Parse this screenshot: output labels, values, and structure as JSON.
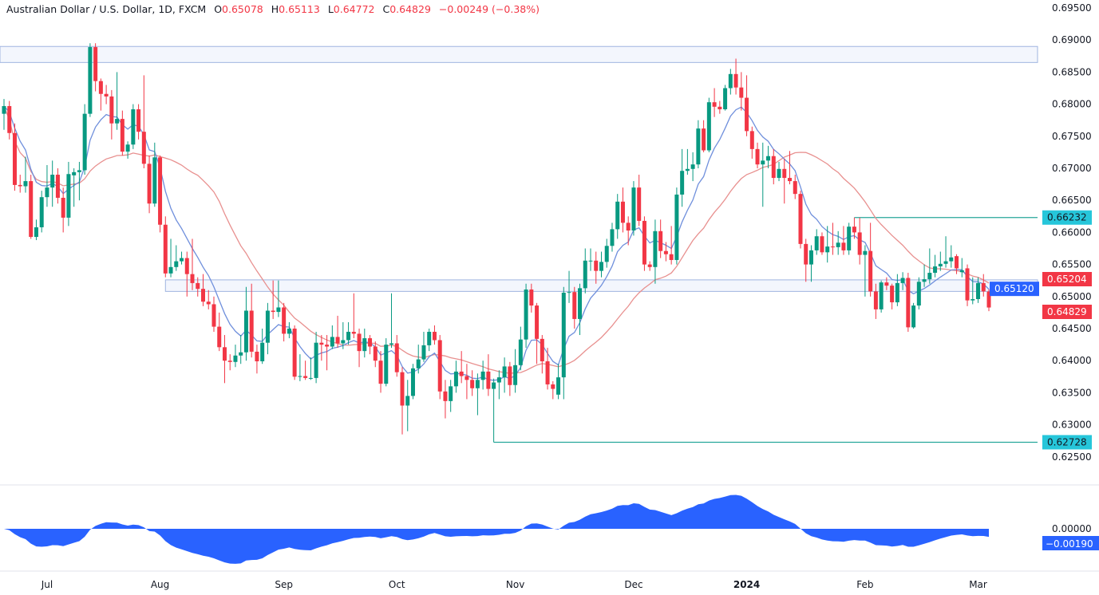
{
  "legend": {
    "symbol": "Australian Dollar / U.S. Dollar, 1D, FXCM",
    "open_label": "O",
    "open": "0.65078",
    "high_label": "H",
    "high": "0.65113",
    "low_label": "L",
    "low": "0.64772",
    "close_label": "C",
    "close": "0.64829",
    "change": "−0.00249 (−0.38%)"
  },
  "price_axis": {
    "ticks": [
      "0.69500",
      "0.69000",
      "0.68500",
      "0.68000",
      "0.67500",
      "0.67000",
      "0.66500",
      "0.66000",
      "0.65500",
      "0.65000",
      "0.64500",
      "0.64000",
      "0.63500",
      "0.63000",
      "0.62500"
    ],
    "labels": [
      {
        "text": "0.66232",
        "value": 0.66232,
        "bg": "#26c6da",
        "fg": "#131722"
      },
      {
        "text": "0.65204",
        "value": 0.65204,
        "bg": "#f23645",
        "fg": "#ffffff"
      },
      {
        "text": "0.65120",
        "value": 0.6512,
        "bg": "#2962ff",
        "fg": "#ffffff"
      },
      {
        "text": "0.64829",
        "value": 0.64829,
        "bg": "#f23645",
        "fg": "#ffffff"
      },
      {
        "text": "0.62728",
        "value": 0.62728,
        "bg": "#26c6da",
        "fg": "#131722"
      }
    ]
  },
  "oscillator_axis": {
    "zero_label": "0.00000",
    "last_label": "−0.00190",
    "last_value": -0.0019,
    "color": "#2962ff"
  },
  "time_axis": {
    "labels": [
      {
        "text": "Jul",
        "bold": false
      },
      {
        "text": "Aug",
        "bold": false
      },
      {
        "text": "Sep",
        "bold": false
      },
      {
        "text": "Oct",
        "bold": false
      },
      {
        "text": "Nov",
        "bold": false
      },
      {
        "text": "Dec",
        "bold": false
      },
      {
        "text": "2024",
        "bold": true
      },
      {
        "text": "Feb",
        "bold": false
      },
      {
        "text": "Mar",
        "bold": false
      }
    ]
  },
  "chart_data": {
    "type": "candlestick",
    "title": "Australian Dollar / U.S. Dollar, 1D, FXCM",
    "ylim": [
      0.625,
      0.695
    ],
    "up_color": "#089981",
    "down_color": "#f23645",
    "ma_colors": {
      "fast": "#6f8fdc",
      "slow": "#e8908f"
    },
    "zones": [
      [
        0.6865,
        0.689
      ],
      [
        0.6508,
        0.6526
      ]
    ],
    "levels": [
      0.66232,
      0.62728
    ],
    "level_color": "#26a69a",
    "zone_color": "#9fb4e0",
    "candles": [
      [
        0.6785,
        0.6808,
        0.676,
        0.6797
      ],
      [
        0.6797,
        0.6805,
        0.6745,
        0.6755
      ],
      [
        0.6755,
        0.677,
        0.6665,
        0.6674
      ],
      [
        0.6674,
        0.669,
        0.6662,
        0.6672
      ],
      [
        0.6672,
        0.6718,
        0.6662,
        0.668
      ],
      [
        0.668,
        0.669,
        0.659,
        0.6593
      ],
      [
        0.6593,
        0.662,
        0.6588,
        0.6608
      ],
      [
        0.6608,
        0.6665,
        0.66,
        0.6655
      ],
      [
        0.6655,
        0.6705,
        0.664,
        0.667
      ],
      [
        0.667,
        0.6712,
        0.664,
        0.669
      ],
      [
        0.669,
        0.67,
        0.6645,
        0.6654
      ],
      [
        0.6654,
        0.667,
        0.66,
        0.6623
      ],
      [
        0.6623,
        0.671,
        0.661,
        0.6691
      ],
      [
        0.6689,
        0.67,
        0.664,
        0.6694
      ],
      [
        0.6694,
        0.671,
        0.665,
        0.6697
      ],
      [
        0.6697,
        0.68,
        0.669,
        0.6785
      ],
      [
        0.6785,
        0.6895,
        0.678,
        0.6889
      ],
      [
        0.6889,
        0.6895,
        0.682,
        0.6836
      ],
      [
        0.6836,
        0.684,
        0.679,
        0.6816
      ],
      [
        0.6816,
        0.683,
        0.68,
        0.6812
      ],
      [
        0.6812,
        0.6822,
        0.6745,
        0.677
      ],
      [
        0.677,
        0.685,
        0.676,
        0.6777
      ],
      [
        0.6777,
        0.679,
        0.672,
        0.6726
      ],
      [
        0.6726,
        0.6742,
        0.6715,
        0.6737
      ],
      [
        0.6737,
        0.68,
        0.673,
        0.6792
      ],
      [
        0.6792,
        0.68,
        0.6745,
        0.6757
      ],
      [
        0.6757,
        0.6845,
        0.67,
        0.6707
      ],
      [
        0.6707,
        0.672,
        0.663,
        0.6645
      ],
      [
        0.6645,
        0.674,
        0.664,
        0.6717
      ],
      [
        0.6717,
        0.672,
        0.66,
        0.6612
      ],
      [
        0.6612,
        0.6625,
        0.653,
        0.6536
      ],
      [
        0.6536,
        0.659,
        0.653,
        0.6546
      ],
      [
        0.6546,
        0.658,
        0.654,
        0.6555
      ],
      [
        0.6555,
        0.657,
        0.655,
        0.656
      ],
      [
        0.656,
        0.657,
        0.65,
        0.6535
      ],
      [
        0.6535,
        0.659,
        0.651,
        0.6521
      ],
      [
        0.6521,
        0.653,
        0.65,
        0.6512
      ],
      [
        0.6512,
        0.6535,
        0.6485,
        0.6492
      ],
      [
        0.6492,
        0.651,
        0.648,
        0.6488
      ],
      [
        0.6488,
        0.65,
        0.6445,
        0.6453
      ],
      [
        0.6453,
        0.6475,
        0.6415,
        0.6421
      ],
      [
        0.6421,
        0.644,
        0.6365,
        0.64
      ],
      [
        0.64,
        0.641,
        0.6385,
        0.6398
      ],
      [
        0.6398,
        0.6425,
        0.639,
        0.6408
      ],
      [
        0.6408,
        0.644,
        0.6395,
        0.6413
      ],
      [
        0.6413,
        0.6515,
        0.64,
        0.6478
      ],
      [
        0.6478,
        0.652,
        0.6405,
        0.6414
      ],
      [
        0.6414,
        0.6425,
        0.638,
        0.6399
      ],
      [
        0.6399,
        0.645,
        0.6395,
        0.6428
      ],
      [
        0.6428,
        0.649,
        0.641,
        0.6478
      ],
      [
        0.6478,
        0.6525,
        0.6465,
        0.6476
      ],
      [
        0.6476,
        0.6525,
        0.6468,
        0.6483
      ],
      [
        0.6483,
        0.649,
        0.643,
        0.6442
      ],
      [
        0.6442,
        0.646,
        0.6435,
        0.645
      ],
      [
        0.645,
        0.6455,
        0.637,
        0.6375
      ],
      [
        0.6375,
        0.641,
        0.6368,
        0.6376
      ],
      [
        0.6376,
        0.64,
        0.637,
        0.6373
      ],
      [
        0.6373,
        0.6405,
        0.637,
        0.6373
      ],
      [
        0.6373,
        0.6445,
        0.6365,
        0.6428
      ],
      [
        0.6428,
        0.644,
        0.64,
        0.6425
      ],
      [
        0.6425,
        0.644,
        0.6385,
        0.6422
      ],
      [
        0.6422,
        0.6455,
        0.6418,
        0.6437
      ],
      [
        0.6437,
        0.647,
        0.642,
        0.6427
      ],
      [
        0.6427,
        0.646,
        0.6418,
        0.6432
      ],
      [
        0.6432,
        0.646,
        0.6425,
        0.6445
      ],
      [
        0.6445,
        0.6505,
        0.6435,
        0.6442
      ],
      [
        0.6442,
        0.645,
        0.639,
        0.6415
      ],
      [
        0.6415,
        0.645,
        0.6405,
        0.6435
      ],
      [
        0.6435,
        0.644,
        0.641,
        0.6422
      ],
      [
        0.6422,
        0.643,
        0.639,
        0.64
      ],
      [
        0.64,
        0.6415,
        0.635,
        0.6364
      ],
      [
        0.6364,
        0.6435,
        0.636,
        0.6425
      ],
      [
        0.6425,
        0.6505,
        0.642,
        0.6427
      ],
      [
        0.6427,
        0.644,
        0.6375,
        0.6382
      ],
      [
        0.6382,
        0.639,
        0.6285,
        0.633
      ],
      [
        0.633,
        0.637,
        0.629,
        0.6345
      ],
      [
        0.6345,
        0.6395,
        0.634,
        0.6388
      ],
      [
        0.6388,
        0.6425,
        0.638,
        0.6402
      ],
      [
        0.6402,
        0.6445,
        0.6398,
        0.6424
      ],
      [
        0.6424,
        0.645,
        0.6415,
        0.6445
      ],
      [
        0.6445,
        0.6455,
        0.6425,
        0.6432
      ],
      [
        0.6432,
        0.644,
        0.634,
        0.6352
      ],
      [
        0.6352,
        0.637,
        0.631,
        0.6337
      ],
      [
        0.6337,
        0.637,
        0.632,
        0.636
      ],
      [
        0.636,
        0.64,
        0.635,
        0.6383
      ],
      [
        0.6383,
        0.6415,
        0.6365,
        0.6376
      ],
      [
        0.6376,
        0.6395,
        0.634,
        0.637
      ],
      [
        0.637,
        0.6385,
        0.6345,
        0.6357
      ],
      [
        0.6357,
        0.638,
        0.6315,
        0.637
      ],
      [
        0.637,
        0.64,
        0.6355,
        0.6383
      ],
      [
        0.6383,
        0.641,
        0.6345,
        0.6356
      ],
      [
        0.6356,
        0.6372,
        0.62728,
        0.6366
      ],
      [
        0.6366,
        0.6385,
        0.634,
        0.6374
      ],
      [
        0.6374,
        0.6405,
        0.635,
        0.6391
      ],
      [
        0.6391,
        0.6398,
        0.6345,
        0.6362
      ],
      [
        0.6362,
        0.6418,
        0.635,
        0.6393
      ],
      [
        0.6393,
        0.6453,
        0.6385,
        0.6433
      ],
      [
        0.6433,
        0.652,
        0.642,
        0.6511
      ],
      [
        0.6511,
        0.652,
        0.6475,
        0.6486
      ],
      [
        0.6486,
        0.649,
        0.6395,
        0.6434
      ],
      [
        0.6434,
        0.644,
        0.638,
        0.6399
      ],
      [
        0.6399,
        0.642,
        0.6355,
        0.6363
      ],
      [
        0.6363,
        0.6368,
        0.634,
        0.6356
      ],
      [
        0.6347,
        0.6395,
        0.634,
        0.6374
      ],
      [
        0.6374,
        0.6515,
        0.634,
        0.6506
      ],
      [
        0.6506,
        0.654,
        0.649,
        0.6507
      ],
      [
        0.6507,
        0.6515,
        0.645,
        0.6465
      ],
      [
        0.6465,
        0.652,
        0.644,
        0.6513
      ],
      [
        0.6513,
        0.6575,
        0.6505,
        0.6556
      ],
      [
        0.6556,
        0.6575,
        0.654,
        0.6556
      ],
      [
        0.6556,
        0.657,
        0.652,
        0.654
      ],
      [
        0.654,
        0.657,
        0.653,
        0.6554
      ],
      [
        0.6554,
        0.659,
        0.6545,
        0.6579
      ],
      [
        0.6579,
        0.6615,
        0.657,
        0.6605
      ],
      [
        0.6605,
        0.666,
        0.659,
        0.6648
      ],
      [
        0.6648,
        0.667,
        0.66,
        0.6615
      ],
      [
        0.6615,
        0.6625,
        0.658,
        0.6603
      ],
      [
        0.6603,
        0.668,
        0.6595,
        0.667
      ],
      [
        0.667,
        0.669,
        0.661,
        0.6618
      ],
      [
        0.6618,
        0.6625,
        0.654,
        0.655
      ],
      [
        0.655,
        0.6555,
        0.654,
        0.6546
      ],
      [
        0.6546,
        0.662,
        0.652,
        0.6602
      ],
      [
        0.6602,
        0.662,
        0.656,
        0.6571
      ],
      [
        0.6571,
        0.6585,
        0.6555,
        0.6566
      ],
      [
        0.6566,
        0.661,
        0.655,
        0.6557
      ],
      [
        0.6557,
        0.667,
        0.655,
        0.6659
      ],
      [
        0.6659,
        0.673,
        0.664,
        0.6696
      ],
      [
        0.6696,
        0.673,
        0.669,
        0.6699
      ],
      [
        0.6699,
        0.6725,
        0.668,
        0.6706
      ],
      [
        0.6706,
        0.6775,
        0.67,
        0.6762
      ],
      [
        0.6762,
        0.6775,
        0.6725,
        0.6728
      ],
      [
        0.6728,
        0.681,
        0.6725,
        0.6803
      ],
      [
        0.6803,
        0.6825,
        0.678,
        0.6796
      ],
      [
        0.6796,
        0.6805,
        0.6785,
        0.6792
      ],
      [
        0.6792,
        0.683,
        0.679,
        0.6825
      ],
      [
        0.6825,
        0.6855,
        0.6815,
        0.6847
      ],
      [
        0.6847,
        0.6871,
        0.6815,
        0.6826
      ],
      [
        0.6826,
        0.685,
        0.679,
        0.681
      ],
      [
        0.681,
        0.6845,
        0.675,
        0.6758
      ],
      [
        0.6758,
        0.6765,
        0.6715,
        0.673
      ],
      [
        0.673,
        0.674,
        0.67,
        0.6706
      ],
      [
        0.6706,
        0.674,
        0.664,
        0.6712
      ],
      [
        0.6712,
        0.6735,
        0.67,
        0.6719
      ],
      [
        0.6719,
        0.673,
        0.6675,
        0.6685
      ],
      [
        0.6685,
        0.671,
        0.668,
        0.6699
      ],
      [
        0.6699,
        0.6715,
        0.6645,
        0.6685
      ],
      [
        0.6685,
        0.6727,
        0.6675,
        0.668
      ],
      [
        0.668,
        0.669,
        0.6652,
        0.666
      ],
      [
        0.666,
        0.6665,
        0.6575,
        0.6582
      ],
      [
        0.6582,
        0.659,
        0.6523,
        0.655
      ],
      [
        0.655,
        0.658,
        0.6523,
        0.6572
      ],
      [
        0.6572,
        0.6605,
        0.6565,
        0.6594
      ],
      [
        0.6594,
        0.66,
        0.6565,
        0.6569
      ],
      [
        0.6569,
        0.661,
        0.6553,
        0.6578
      ],
      [
        0.6578,
        0.6615,
        0.6565,
        0.6577
      ],
      [
        0.6577,
        0.6602,
        0.6565,
        0.6584
      ],
      [
        0.6584,
        0.661,
        0.6565,
        0.6572
      ],
      [
        0.6572,
        0.6615,
        0.6565,
        0.6609
      ],
      [
        0.6609,
        0.66232,
        0.659,
        0.66
      ],
      [
        0.66,
        0.66232,
        0.655,
        0.6565
      ],
      [
        0.6565,
        0.658,
        0.65,
        0.6571
      ],
      [
        0.6571,
        0.6615,
        0.65,
        0.6508
      ],
      [
        0.6508,
        0.652,
        0.6465,
        0.648
      ],
      [
        0.648,
        0.6525,
        0.6475,
        0.6522
      ],
      [
        0.6522,
        0.653,
        0.651,
        0.6517
      ],
      [
        0.6517,
        0.652,
        0.648,
        0.6491
      ],
      [
        0.6491,
        0.6535,
        0.6485,
        0.6521
      ],
      [
        0.6521,
        0.6538,
        0.651,
        0.6529
      ],
      [
        0.6529,
        0.6537,
        0.6445,
        0.6452
      ],
      [
        0.6452,
        0.649,
        0.645,
        0.6486
      ],
      [
        0.6486,
        0.653,
        0.648,
        0.6523
      ],
      [
        0.6523,
        0.655,
        0.6515,
        0.6527
      ],
      [
        0.6527,
        0.6575,
        0.652,
        0.6537
      ],
      [
        0.6537,
        0.6565,
        0.653,
        0.6547
      ],
      [
        0.6547,
        0.657,
        0.654,
        0.6551
      ],
      [
        0.6551,
        0.6594,
        0.6545,
        0.6555
      ],
      [
        0.6555,
        0.658,
        0.6545,
        0.6561
      ],
      [
        0.6563,
        0.6566,
        0.6535,
        0.6544
      ],
      [
        0.6538,
        0.656,
        0.653,
        0.6541
      ],
      [
        0.6544,
        0.655,
        0.6485,
        0.6494
      ],
      [
        0.6494,
        0.653,
        0.6488,
        0.6496
      ],
      [
        0.6496,
        0.653,
        0.649,
        0.6521
      ],
      [
        0.6521,
        0.6535,
        0.65,
        0.6508
      ],
      [
        0.65078,
        0.65113,
        0.64772,
        0.64829
      ]
    ]
  }
}
